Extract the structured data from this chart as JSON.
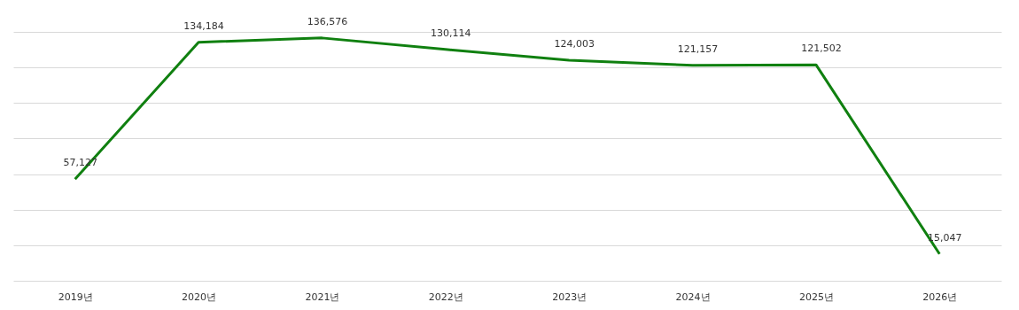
{
  "chart_data": {
    "type": "line",
    "categories": [
      "2019년",
      "2020년",
      "2021년",
      "2022년",
      "2023년",
      "2024년",
      "2025년",
      "2026년"
    ],
    "series": [
      {
        "color": "#108010",
        "values": [
          57127,
          134184,
          136576,
          130114,
          124003,
          121157,
          121502,
          15047
        ],
        "value_labels": [
          "57,127",
          "134,184",
          "136,576",
          "130,114",
          "124,003",
          "121,157",
          "121,502",
          "15,047"
        ]
      }
    ],
    "grid": "y",
    "tick_labels": "x",
    "marker": "none",
    "line_style": "solid"
  }
}
